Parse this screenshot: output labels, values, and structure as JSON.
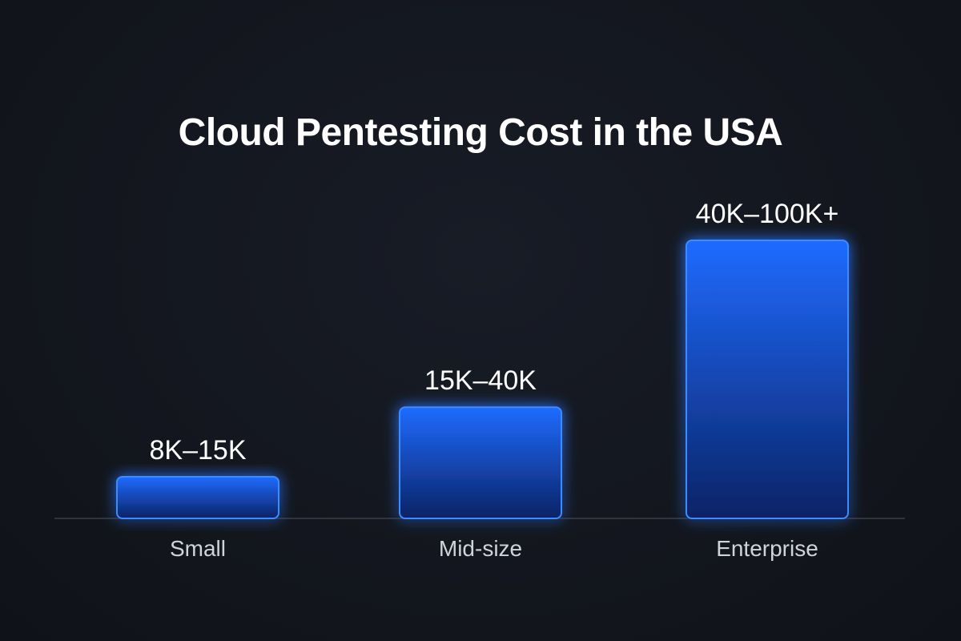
{
  "chart_data": {
    "type": "bar",
    "title": "Cloud Pentesting Cost in the USA",
    "categories": [
      "Small",
      "Mid-size",
      "Enterprise"
    ],
    "value_labels": [
      "8K–15K",
      "15K–40K",
      "40K–100K+"
    ],
    "ranges": [
      {
        "low": 8000,
        "high": 15000
      },
      {
        "low": 15000,
        "high": 40000
      },
      {
        "low": 40000,
        "high": 100000
      }
    ],
    "values": [
      15,
      40,
      100
    ],
    "units": "K",
    "xlabel": "",
    "ylabel": "",
    "ylim": [
      0,
      100
    ],
    "grid": false,
    "legend": "none",
    "colors": {
      "bar_top": "#1f6bff",
      "bar_bottom": "#0a2366",
      "bar_stroke": "#3d8bff",
      "glow": "#1a73ff",
      "axis": "#3a3f4a",
      "background": "#13161e"
    }
  }
}
